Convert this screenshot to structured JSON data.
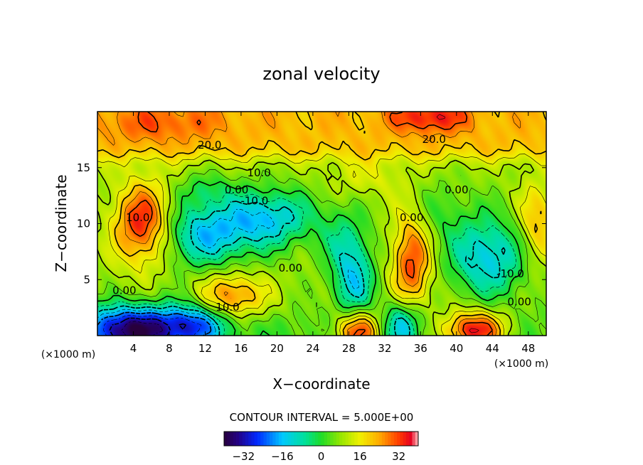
{
  "chart_data": {
    "type": "heatmap",
    "title": "zonal velocity",
    "xlabel": "X−coordinate",
    "ylabel": "Z−coordinate",
    "x_unit_label": "(×1000 m)",
    "y_unit_label": "(×1000 m)",
    "xlim": [
      0,
      50
    ],
    "ylim": [
      0,
      20
    ],
    "x_ticks": [
      "4",
      "8",
      "12",
      "16",
      "20",
      "24",
      "28",
      "32",
      "36",
      "40",
      "44",
      "48"
    ],
    "y_ticks": [
      "5",
      "10",
      "15"
    ],
    "contour_interval_label": "CONTOUR INTERVAL = 5.000E+00",
    "colorbar": {
      "min": -40,
      "max": 40,
      "ticks": [
        "−32",
        "−16",
        "0",
        "16",
        "32"
      ]
    },
    "contour_labels": [
      {
        "text": "20.0",
        "x": 12.5,
        "z": 17.0
      },
      {
        "text": "20.0",
        "x": 37.5,
        "z": 17.5
      },
      {
        "text": "10.0",
        "x": 18.0,
        "z": 14.5
      },
      {
        "text": "0.00",
        "x": 15.5,
        "z": 13.0
      },
      {
        "text": "-10.0",
        "x": 17.5,
        "z": 12.0
      },
      {
        "text": "0.00",
        "x": 40.0,
        "z": 13.0
      },
      {
        "text": "0.00",
        "x": 35.0,
        "z": 10.5
      },
      {
        "text": "10.0",
        "x": 4.5,
        "z": 10.5
      },
      {
        "text": "0.00",
        "x": 21.5,
        "z": 6.0
      },
      {
        "text": "-10.0",
        "x": 46.0,
        "z": 5.5
      },
      {
        "text": "0.00",
        "x": 3.0,
        "z": 4.0
      },
      {
        "text": "10.0",
        "x": 14.5,
        "z": 2.5
      },
      {
        "text": "0.00",
        "x": 47.0,
        "z": 3.0
      }
    ],
    "field_anomalies": [
      {
        "x": 5,
        "z": 10,
        "amp": 28,
        "sx": 2.2,
        "sz": 2.5
      },
      {
        "x": 12,
        "z": 9,
        "amp": -22,
        "sx": 3.5,
        "sz": 2.0
      },
      {
        "x": 19,
        "z": 10.5,
        "amp": -22,
        "sx": 3.5,
        "sz": 1.8
      },
      {
        "x": 15,
        "z": 3.5,
        "amp": 20,
        "sx": 2.5,
        "sz": 1.4
      },
      {
        "x": 4,
        "z": 0.5,
        "amp": -42,
        "sx": 4.0,
        "sz": 1.5
      },
      {
        "x": 11,
        "z": 1.0,
        "amp": -22,
        "sx": 2.5,
        "sz": 1.3
      },
      {
        "x": 27,
        "z": 9,
        "amp": -8,
        "sx": 2.0,
        "sz": 2.0
      },
      {
        "x": 28.5,
        "z": 5,
        "amp": -22,
        "sx": 1.6,
        "sz": 2.6
      },
      {
        "x": 29,
        "z": 0.4,
        "amp": 32,
        "sx": 1.8,
        "sz": 1.3
      },
      {
        "x": 34,
        "z": 1.0,
        "amp": -20,
        "sx": 1.5,
        "sz": 1.6
      },
      {
        "x": 35,
        "z": 6.5,
        "amp": 24,
        "sx": 1.5,
        "sz": 3.2
      },
      {
        "x": 38,
        "z": 11,
        "amp": -6,
        "sx": 2.5,
        "sz": 2.0
      },
      {
        "x": 43.5,
        "z": 7,
        "amp": -22,
        "sx": 3.0,
        "sz": 2.5
      },
      {
        "x": 42,
        "z": 0.5,
        "amp": 34,
        "sx": 2.5,
        "sz": 1.2
      },
      {
        "x": 49,
        "z": 10,
        "amp": 15,
        "sx": 1.5,
        "sz": 2.5
      },
      {
        "x": 37,
        "z": 19.5,
        "amp": 14,
        "sx": 3.0,
        "sz": 1.0
      },
      {
        "x": 7,
        "z": 19.0,
        "amp": 8,
        "sx": 5.0,
        "sz": 1.2
      },
      {
        "x": 12,
        "z": 13,
        "amp": -8,
        "sx": 2.0,
        "sz": 1.0
      },
      {
        "x": 30,
        "z": 14,
        "amp": 6,
        "sx": 3.0,
        "sz": 1.2
      }
    ]
  }
}
